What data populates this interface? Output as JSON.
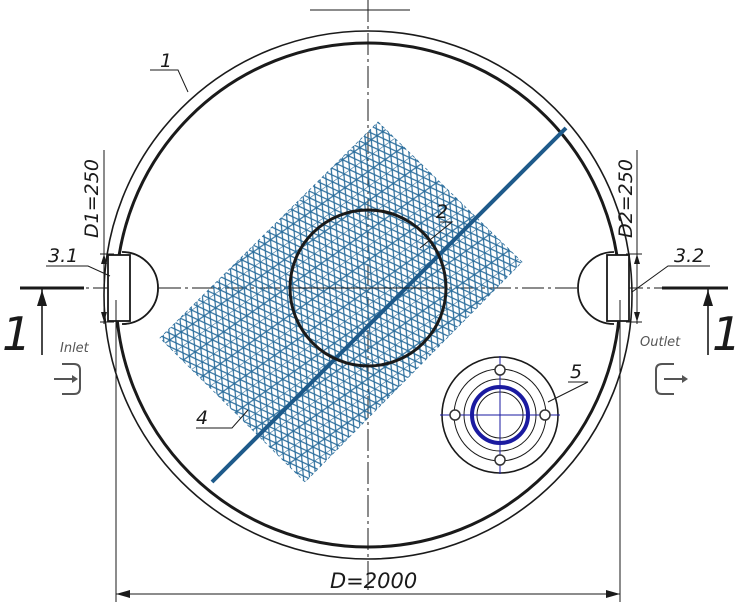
{
  "labels": {
    "ring": "1",
    "circle": "2",
    "inlet_pipe": "3.1",
    "outlet_pipe": "3.2",
    "mesh": "4",
    "hatch": "5",
    "inlet_dim": "D1=250",
    "outlet_dim": "D2=250",
    "diameter_dim": "D=2000",
    "section_left": "1",
    "section_right": "1",
    "inlet": "Inlet",
    "outlet": "Outlet"
  },
  "colors": {
    "line": "#1a1a1a",
    "mesh": "#2a6d9c",
    "mesh_edge": "#1e5a8a",
    "hatch_blue": "#1a1aa0"
  },
  "icons": {
    "inlet": "inlet-arrow-icon",
    "outlet": "outlet-arrow-icon"
  }
}
